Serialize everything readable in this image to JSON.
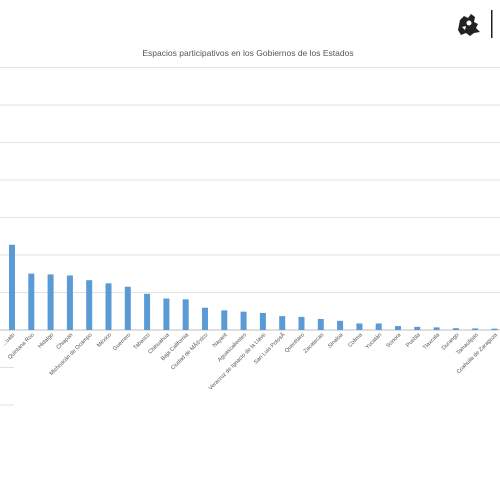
{
  "chart_data": {
    "type": "bar",
    "title": "Espacios participativos en los Gobiernos de los Estados",
    "xlabel": "",
    "ylabel": "",
    "ylim": [
      0,
      100
    ],
    "grid": true,
    "categories": [
      "…uato",
      "Quintana Roo",
      "Hidalgo",
      "Chiapas",
      "Michoacán de Ocampo",
      "México",
      "Guerrero",
      "Tabasco",
      "Chihuahua",
      "Baja California",
      "Ciudad de MÃ©xico",
      "Nayarit",
      "Aguascalientes",
      "Veracruz de Ignacio de la Llave",
      "San Luis PotosÃ­",
      "Querétaro",
      "Zacatecas",
      "Sinaloa",
      "Colima",
      "Yucatán",
      "Sonora",
      "Puebla",
      "Tlaxcala",
      "Durango",
      "Tamaulipas",
      "Coahuila de Zaragoza",
      "…"
    ],
    "values": [
      32.5,
      21.5,
      21.2,
      20.8,
      19.0,
      17.8,
      16.5,
      13.8,
      12.0,
      11.7,
      8.5,
      7.5,
      7.0,
      6.5,
      5.3,
      5.0,
      4.2,
      3.5,
      2.5,
      2.5,
      1.5,
      1.2,
      1.0,
      0.7,
      0.6,
      0.5,
      0.4
    ],
    "colors": {
      "bar": "#5b9bd5",
      "grid": "#d9d9d9",
      "axis": "#bfbfbf"
    }
  },
  "logo": {
    "icon": "coat-of-arms-icon"
  }
}
